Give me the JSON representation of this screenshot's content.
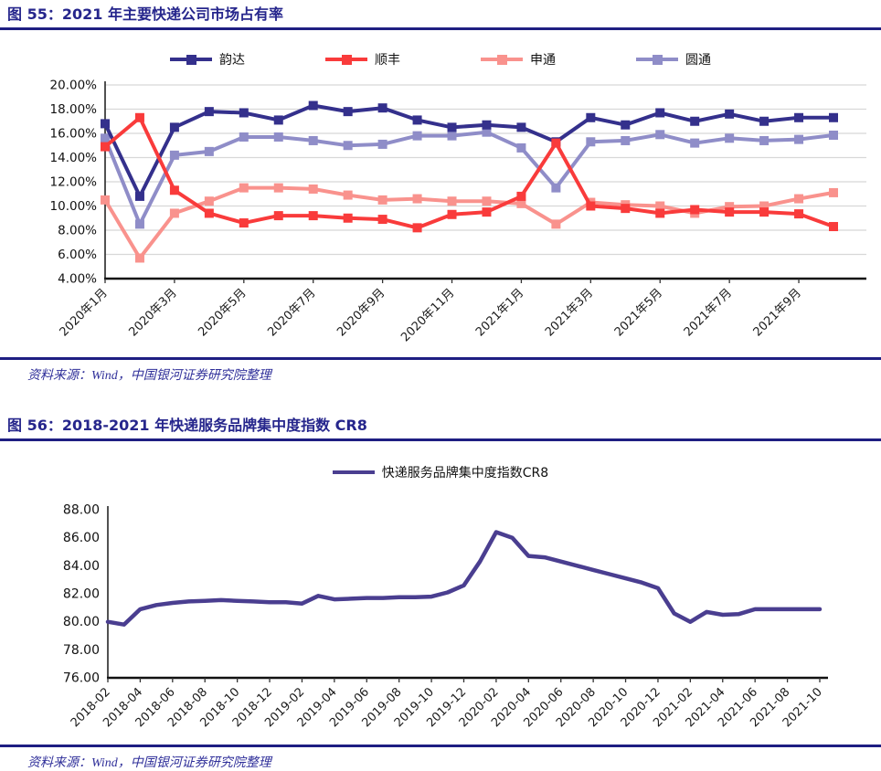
{
  "figure55": {
    "title": "图 55：2021 年主要快递公司市场占有率",
    "source": "资料来源：Wind，中国银河证券研究院整理"
  },
  "figure56": {
    "title": "图 56：2018-2021 年快递服务品牌集中度指数 CR8",
    "source": "资料来源：Wind，中国银河证券研究院整理"
  },
  "chart_data": [
    {
      "type": "line",
      "title": "2021 年主要快递公司市场占有率",
      "legend_position": "top",
      "grid": "horizontal",
      "grid_color": "#d8d8d8",
      "ylim": [
        4,
        20
      ],
      "y_tick_labels": [
        "20.00%",
        "18.00%",
        "16.00%",
        "14.00%",
        "12.00%",
        "10.00%",
        "8.00%",
        "6.00%",
        "4.00%"
      ],
      "x_tick_every": 2,
      "x_tick_labels": [
        "2020年1月",
        "2020年3月",
        "2020年5月",
        "2020年7月",
        "2020年9月",
        "2020年11月",
        "2021年1月",
        "2021年3月",
        "2021年5月",
        "2021年7月",
        "2021年9月"
      ],
      "categories": [
        "2020年1月",
        "2020年2月",
        "2020年3月",
        "2020年4月",
        "2020年5月",
        "2020年6月",
        "2020年7月",
        "2020年8月",
        "2020年9月",
        "2020年10月",
        "2020年11月",
        "2020年12月",
        "2021年1月",
        "2021年2月",
        "2021年3月",
        "2021年4月",
        "2021年5月",
        "2021年6月",
        "2021年7月",
        "2021年8月",
        "2021年9月",
        "2021年10月"
      ],
      "series": [
        {
          "name": "韵达",
          "slug": "yunda",
          "color": "#34308c",
          "values": [
            16.8,
            10.8,
            16.5,
            17.8,
            17.7,
            17.1,
            18.3,
            17.8,
            18.1,
            17.1,
            16.5,
            16.7,
            16.5,
            15.3,
            17.3,
            16.7,
            17.7,
            17.0,
            17.6,
            17.0,
            17.3,
            17.3
          ]
        },
        {
          "name": "顺丰",
          "slug": "shunfeng",
          "color": "#f93b3b",
          "values": [
            14.9,
            17.3,
            11.3,
            9.4,
            8.6,
            9.2,
            9.2,
            9.0,
            8.9,
            8.2,
            9.3,
            9.5,
            10.8,
            15.2,
            10.0,
            9.8,
            9.4,
            9.7,
            9.5,
            9.5,
            9.35,
            8.3
          ]
        },
        {
          "name": "申通",
          "slug": "shentong",
          "color": "#f9928d",
          "values": [
            10.5,
            5.7,
            9.4,
            10.4,
            11.5,
            11.5,
            11.4,
            10.9,
            10.5,
            10.6,
            10.4,
            10.4,
            10.2,
            8.5,
            10.3,
            10.1,
            10.0,
            9.4,
            9.95,
            10.0,
            10.6,
            11.1
          ]
        },
        {
          "name": "圆通",
          "slug": "yuantong",
          "color": "#8f8dc8",
          "values": [
            15.6,
            8.5,
            14.2,
            14.5,
            15.7,
            15.7,
            15.4,
            15.0,
            15.1,
            15.8,
            15.8,
            16.1,
            14.8,
            11.5,
            15.3,
            15.4,
            15.9,
            15.2,
            15.6,
            15.4,
            15.5,
            15.85
          ]
        }
      ],
      "draw_order": [
        3,
        2,
        0,
        1
      ]
    },
    {
      "type": "line",
      "title": "2018-2021 年快递服务品牌集中度指数 CR8",
      "legend_label": "快递服务品牌集中度指数CR8",
      "legend_position": "top",
      "grid": "off",
      "ylim": [
        76,
        88
      ],
      "y_tick_labels": [
        "88.00",
        "86.00",
        "84.00",
        "82.00",
        "80.00",
        "78.00",
        "76.00"
      ],
      "x_tick_every": 2,
      "x_tick_labels": [
        "2018-02",
        "2018-04",
        "2018-06",
        "2018-08",
        "2018-10",
        "2018-12",
        "2019-02",
        "2019-04",
        "2019-06",
        "2019-08",
        "2019-10",
        "2019-12",
        "2020-02",
        "2020-04",
        "2020-06",
        "2020-08",
        "2020-10",
        "2020-12",
        "2021-02",
        "2021-04",
        "2021-06",
        "2021-08",
        "2021-10"
      ],
      "categories": [
        "2018-02",
        "2018-03",
        "2018-04",
        "2018-05",
        "2018-06",
        "2018-07",
        "2018-08",
        "2018-09",
        "2018-10",
        "2018-11",
        "2018-12",
        "2019-01",
        "2019-02",
        "2019-03",
        "2019-04",
        "2019-05",
        "2019-06",
        "2019-07",
        "2019-08",
        "2019-09",
        "2019-10",
        "2019-11",
        "2019-12",
        "2020-01",
        "2020-02",
        "2020-03",
        "2020-04",
        "2020-05",
        "2020-06",
        "2020-07",
        "2020-08",
        "2020-09",
        "2020-10",
        "2020-11",
        "2020-12",
        "2021-01",
        "2021-02",
        "2021-03",
        "2021-04",
        "2021-05",
        "2021-06",
        "2021-07",
        "2021-08",
        "2021-09",
        "2021-10"
      ],
      "series": [
        {
          "name": "快递服务品牌集中度指数CR8",
          "slug": "cr8",
          "color": "#4a3e90",
          "values": [
            80.0,
            79.8,
            80.9,
            81.2,
            81.35,
            81.45,
            81.5,
            81.55,
            81.5,
            81.45,
            81.4,
            81.4,
            81.3,
            81.85,
            81.6,
            81.65,
            81.7,
            81.7,
            81.75,
            81.75,
            81.8,
            82.1,
            82.6,
            84.3,
            86.4,
            86.0,
            84.7,
            84.6,
            84.3,
            84.0,
            83.7,
            83.4,
            83.1,
            82.8,
            82.4,
            80.6,
            80.0,
            80.7,
            80.5,
            80.55,
            80.9,
            80.9,
            80.9,
            80.9,
            80.9
          ]
        }
      ],
      "draw_order": [
        0
      ]
    }
  ]
}
